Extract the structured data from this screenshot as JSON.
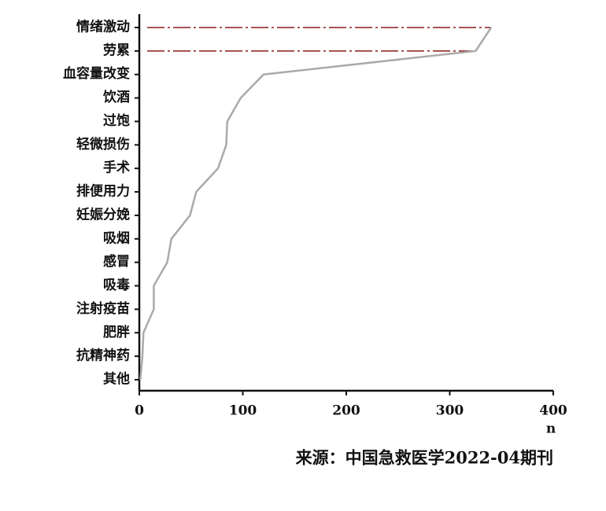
{
  "chart_data": {
    "type": "line",
    "categories": [
      "情绪激动",
      "劳累",
      "血容量改变",
      "饮酒",
      "过饱",
      "轻微损伤",
      "手术",
      "排便用力",
      "妊娠分娩",
      "吸烟",
      "感冒",
      "吸毒",
      "注射疫苗",
      "肥胖",
      "抗精神药",
      "其他"
    ],
    "values": [
      340,
      325,
      120,
      98,
      85,
      84,
      76,
      55,
      49,
      31,
      27,
      14,
      14,
      4,
      3,
      1
    ],
    "color": "#aaaaaa",
    "highlight_color": "#8b1a1a",
    "xlim": [
      0,
      400
    ],
    "xticks": [
      0,
      100,
      200,
      300,
      400
    ],
    "xlabel": "n",
    "source": "来源：中国急救医学2022-04期刊"
  }
}
